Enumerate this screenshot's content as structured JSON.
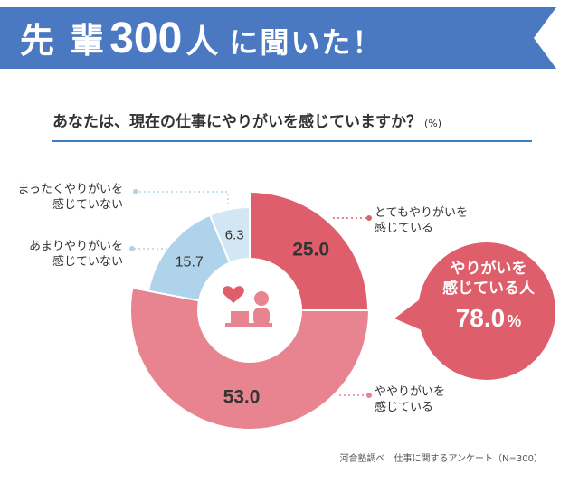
{
  "banner": {
    "title_a": "先 輩",
    "title_num": "300",
    "title_b": "人",
    "title_c": "に聞いた！",
    "color": "#4a79c2"
  },
  "question": {
    "text": "あなたは、現在の仕事にやりがいを感じていますか？",
    "unit": "(%)"
  },
  "chart_data": {
    "type": "pie",
    "title": "あなたは、現在の仕事にやりがいを感じていますか？",
    "unit": "%",
    "slices": [
      {
        "label": "とてもやりがいを感じている",
        "value": 25.0,
        "value_label": "25.0",
        "color": "#df5e6b"
      },
      {
        "label": "ややりがいを感じている",
        "value": 53.0,
        "value_label": "53.0",
        "color": "#e8848f"
      },
      {
        "label": "あまりやりがいを感じていない",
        "value": 15.7,
        "value_label": "15.7",
        "color": "#afd3ea"
      },
      {
        "label": "まったくやりがいを感じていない",
        "value": 6.3,
        "value_label": "6.3",
        "color": "#d3e6f4"
      }
    ]
  },
  "labels": {
    "s0_l1": "とてもやりがいを",
    "s0_l2": "感じている",
    "s1_l1": "ややりがいを",
    "s1_l2": "感じている",
    "s2_l1": "あまりやりがいを",
    "s2_l2": "感じていない",
    "s3_l1": "まったくやりがいを",
    "s3_l2": "感じていない"
  },
  "callout": {
    "line1": "やりがいを",
    "line2": "感じている人",
    "value": "78.0",
    "unit": "%",
    "color": "#df5e6b"
  },
  "source": "河合塾調べ　仕事に関するアンケート（N=300）"
}
